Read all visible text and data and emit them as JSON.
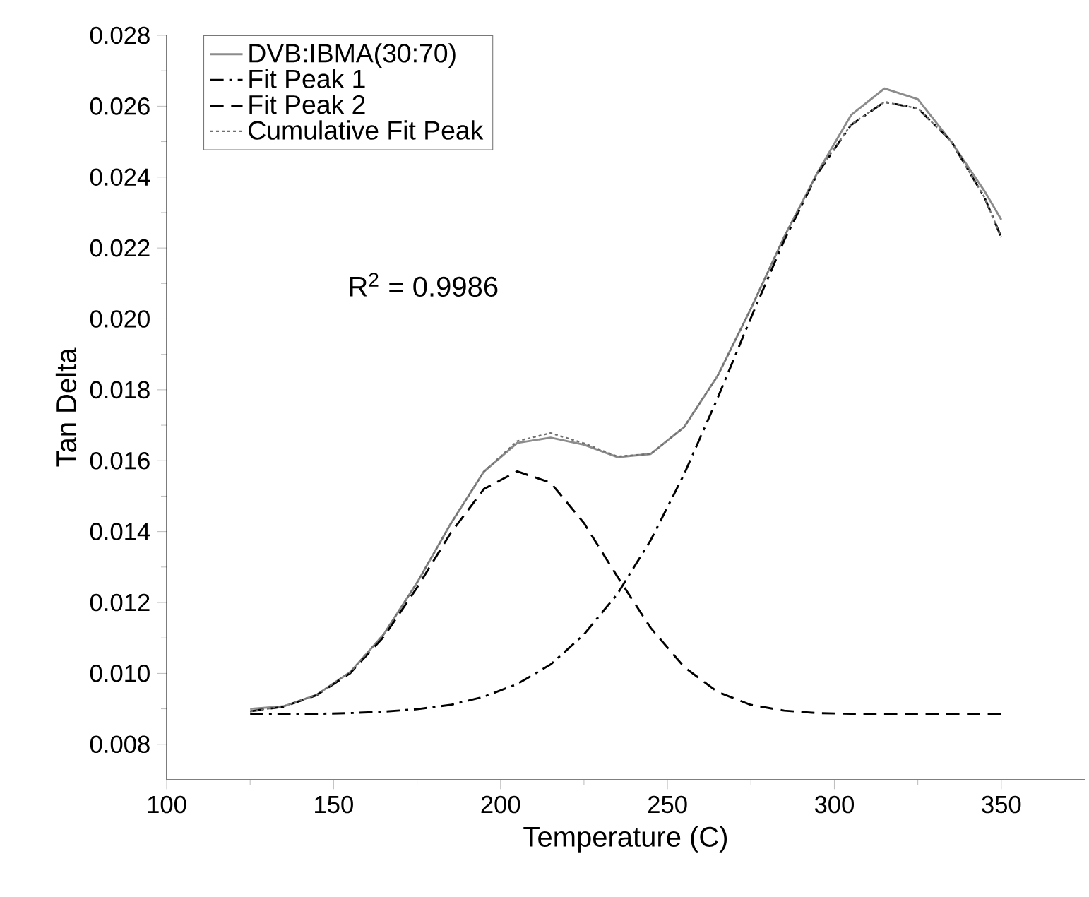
{
  "chart_data": {
    "type": "line",
    "xlabel": "Temperature (C)",
    "ylabel": "Tan Delta",
    "annotations": [
      "R$^{2}$ = 0.9986"
    ],
    "xlim": [
      100,
      375
    ],
    "ylim": [
      0.007,
      0.028
    ],
    "xticks": [
      100,
      150,
      200,
      250,
      300,
      350
    ],
    "yticks": [
      0.008,
      {
        "value": 0.01,
        "label": "0.010"
      },
      0.012,
      0.014,
      0.016,
      0.018,
      {
        "value": 0.02,
        "label": "0.020"
      },
      0.022,
      0.024,
      0.026,
      0.028
    ],
    "grid": false,
    "legend": "top left",
    "marker": "none",
    "x": [
      125,
      135,
      145,
      155,
      165,
      175,
      185,
      195,
      205,
      215,
      225,
      235,
      245,
      255,
      265,
      275,
      285,
      295,
      305,
      315,
      325,
      335,
      345,
      350
    ],
    "series": [
      {
        "name": "DVB:IBMA(30:70)",
        "color": "#8c8c8c",
        "line_style": "solid",
        "values": [
          0.009,
          0.00907,
          0.0094,
          0.01004,
          0.0111,
          0.01256,
          0.01421,
          0.01569,
          0.0165,
          0.01665,
          0.01645,
          0.0161,
          0.01619,
          0.01695,
          0.01839,
          0.02029,
          0.02232,
          0.02414,
          0.02575,
          0.0265,
          0.0262,
          0.025,
          0.0236,
          0.0228
        ]
      },
      {
        "name": "Fit Peak 1",
        "color": "#000000",
        "line_style": "dashdot",
        "values": [
          0.00885,
          0.00886,
          0.00886,
          0.00888,
          0.00892,
          0.00899,
          0.00911,
          0.00934,
          0.0097,
          0.01025,
          0.0111,
          0.01224,
          0.01376,
          0.01562,
          0.01776,
          0.02003,
          0.02222,
          0.02411,
          0.02547,
          0.02612,
          0.02594,
          0.02501,
          0.02342,
          0.0223
        ]
      },
      {
        "name": "Fit Peak 2",
        "color": "#000000",
        "line_style": "dashed",
        "values": [
          0.00893,
          0.00906,
          0.00939,
          0.01001,
          0.01103,
          0.01242,
          0.01395,
          0.0152,
          0.0157,
          0.01538,
          0.01424,
          0.01273,
          0.01128,
          0.01018,
          0.00948,
          0.00911,
          0.00895,
          0.00888,
          0.00886,
          0.00885,
          0.00885,
          0.00885,
          0.00885,
          0.00885
        ]
      },
      {
        "name": "Cumulative Fit Peak",
        "color": "#707070",
        "line_style": "dotted",
        "values": [
          0.00893,
          0.00907,
          0.0094,
          0.01004,
          0.0111,
          0.01256,
          0.01421,
          0.01569,
          0.01655,
          0.01678,
          0.01649,
          0.01612,
          0.01619,
          0.01695,
          0.01839,
          0.02029,
          0.02232,
          0.02414,
          0.02548,
          0.02612,
          0.02594,
          0.02501,
          0.02342,
          0.0223
        ]
      }
    ]
  }
}
